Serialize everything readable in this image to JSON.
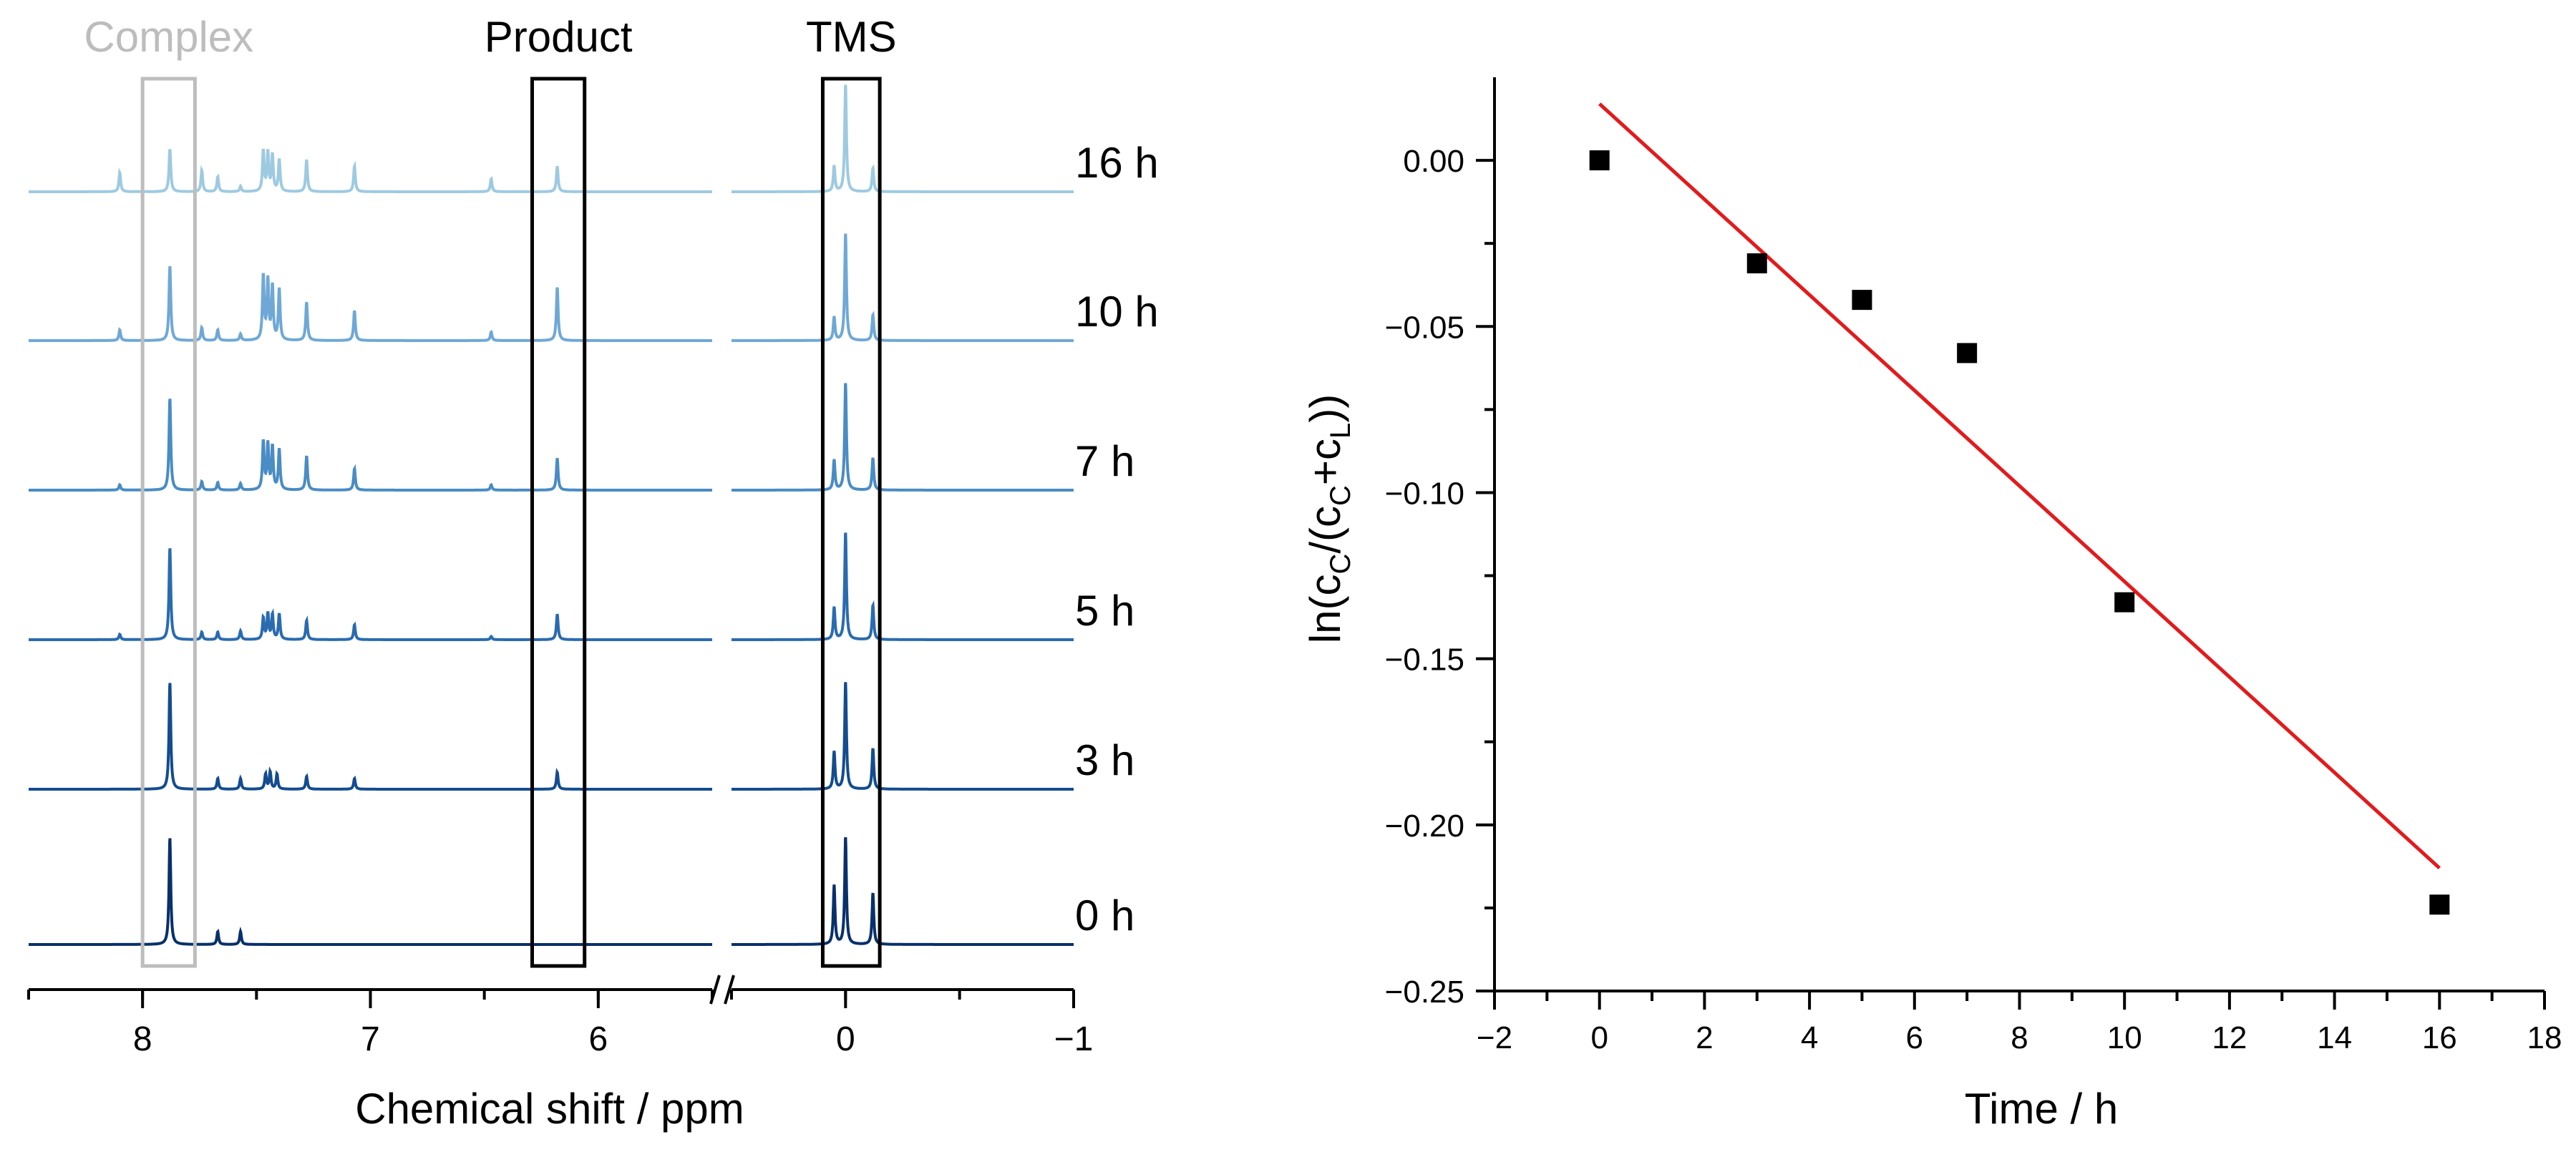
{
  "chart_data": [
    {
      "type": "line",
      "panel": "left",
      "title": "",
      "xlabel": "Chemical shift / ppm",
      "ylabel": "",
      "x_reversed": true,
      "axis_break": true,
      "x_segments": [
        {
          "xlim": [
            8.5,
            5.5
          ],
          "ticks": [
            8,
            7,
            6
          ],
          "tick_labels": [
            "8",
            "7",
            "6"
          ]
        },
        {
          "xlim": [
            0.5,
            -1
          ],
          "ticks": [
            0,
            -1
          ],
          "tick_labels": [
            "0",
            "−1"
          ]
        }
      ],
      "boxes": [
        {
          "label": "Complex",
          "x_range": [
            8.0,
            7.77
          ],
          "color": "#bdbdbd"
        },
        {
          "label": "Product",
          "x_range": [
            6.29,
            6.06
          ],
          "color": "#000000"
        },
        {
          "label": "TMS",
          "x_range": [
            0.1,
            -0.15
          ],
          "color": "#000000"
        }
      ],
      "series": [
        {
          "name": "0 h",
          "color": "#08306b",
          "peaks": [
            [
              7.88,
              1.0
            ],
            [
              7.67,
              0.12
            ],
            [
              7.57,
              0.12
            ],
            [
              0.05,
              0.55
            ],
            [
              0.0,
              1.0
            ],
            [
              -0.12,
              0.48
            ]
          ]
        },
        {
          "name": "3 h",
          "color": "#134c8f",
          "peaks": [
            [
              7.88,
              1.0
            ],
            [
              7.67,
              0.1
            ],
            [
              7.57,
              0.1
            ],
            [
              7.46,
              0.14
            ],
            [
              7.44,
              0.16
            ],
            [
              7.41,
              0.14
            ],
            [
              7.28,
              0.12
            ],
            [
              7.07,
              0.1
            ],
            [
              6.18,
              0.16
            ],
            [
              0.05,
              0.35
            ],
            [
              0.0,
              1.0
            ],
            [
              -0.12,
              0.38
            ]
          ]
        },
        {
          "name": "5 h",
          "color": "#2a6bb0",
          "peaks": [
            [
              8.1,
              0.05
            ],
            [
              7.88,
              0.86
            ],
            [
              7.74,
              0.07
            ],
            [
              7.67,
              0.07
            ],
            [
              7.57,
              0.08
            ],
            [
              7.47,
              0.2
            ],
            [
              7.45,
              0.24
            ],
            [
              7.43,
              0.23
            ],
            [
              7.4,
              0.24
            ],
            [
              7.28,
              0.18
            ],
            [
              7.07,
              0.14
            ],
            [
              6.47,
              0.03
            ],
            [
              6.18,
              0.24
            ],
            [
              0.05,
              0.3
            ],
            [
              0.0,
              1.0
            ],
            [
              -0.12,
              0.32
            ]
          ]
        },
        {
          "name": "7 h",
          "color": "#4a8cc4",
          "peaks": [
            [
              8.1,
              0.05
            ],
            [
              7.88,
              0.86
            ],
            [
              7.74,
              0.08
            ],
            [
              7.67,
              0.07
            ],
            [
              7.57,
              0.06
            ],
            [
              7.47,
              0.45
            ],
            [
              7.45,
              0.42
            ],
            [
              7.43,
              0.4
            ],
            [
              7.4,
              0.38
            ],
            [
              7.28,
              0.32
            ],
            [
              7.07,
              0.2
            ],
            [
              6.47,
              0.05
            ],
            [
              6.18,
              0.3
            ],
            [
              0.05,
              0.28
            ],
            [
              0.0,
              1.0
            ],
            [
              -0.12,
              0.3
            ]
          ]
        },
        {
          "name": "10 h",
          "color": "#6fa8d6",
          "peaks": [
            [
              8.1,
              0.1
            ],
            [
              7.88,
              0.7
            ],
            [
              7.74,
              0.12
            ],
            [
              7.67,
              0.1
            ],
            [
              7.57,
              0.06
            ],
            [
              7.47,
              0.6
            ],
            [
              7.45,
              0.55
            ],
            [
              7.43,
              0.5
            ],
            [
              7.4,
              0.48
            ],
            [
              7.28,
              0.36
            ],
            [
              7.07,
              0.28
            ],
            [
              6.47,
              0.08
            ],
            [
              6.18,
              0.5
            ],
            [
              0.05,
              0.22
            ],
            [
              0.0,
              1.0
            ],
            [
              -0.12,
              0.24
            ]
          ]
        },
        {
          "name": "16 h",
          "color": "#9ecae1",
          "peaks": [
            [
              8.1,
              0.18
            ],
            [
              7.88,
              0.4
            ],
            [
              7.74,
              0.2
            ],
            [
              7.67,
              0.14
            ],
            [
              7.57,
              0.05
            ],
            [
              7.47,
              0.38
            ],
            [
              7.45,
              0.36
            ],
            [
              7.43,
              0.34
            ],
            [
              7.4,
              0.3
            ],
            [
              7.28,
              0.3
            ],
            [
              7.07,
              0.24
            ],
            [
              6.47,
              0.12
            ],
            [
              6.18,
              0.24
            ],
            [
              0.05,
              0.24
            ],
            [
              0.0,
              1.0
            ],
            [
              -0.12,
              0.22
            ]
          ]
        }
      ]
    },
    {
      "type": "scatter",
      "panel": "right",
      "title": "",
      "xlabel": "Time / h",
      "ylabel_parts": [
        "ln(c",
        "C",
        "/(c",
        "C",
        "+c",
        "L",
        "))"
      ],
      "xlim": [
        -2,
        18
      ],
      "ylim": [
        -0.25,
        0.025
      ],
      "xticks": [
        -2,
        0,
        2,
        4,
        6,
        8,
        10,
        12,
        14,
        16,
        18
      ],
      "xtick_labels": [
        "−2",
        "0",
        "2",
        "4",
        "6",
        "8",
        "10",
        "12",
        "14",
        "16",
        "18"
      ],
      "yticks": [
        0.0,
        -0.05,
        -0.1,
        -0.15,
        -0.2,
        -0.25
      ],
      "ytick_labels": [
        "0.00",
        "−0.05",
        "−0.10",
        "−0.15",
        "−0.20",
        "−0.25"
      ],
      "grid": false,
      "points": {
        "x": [
          0,
          3,
          5,
          7,
          10,
          16
        ],
        "y": [
          0.0,
          -0.031,
          -0.042,
          -0.058,
          -0.133,
          -0.224
        ],
        "marker": "square",
        "color": "#000000"
      },
      "fit_line": {
        "x": [
          0,
          16
        ],
        "y": [
          0.017,
          -0.213
        ],
        "color": "#e31a1c"
      }
    }
  ]
}
